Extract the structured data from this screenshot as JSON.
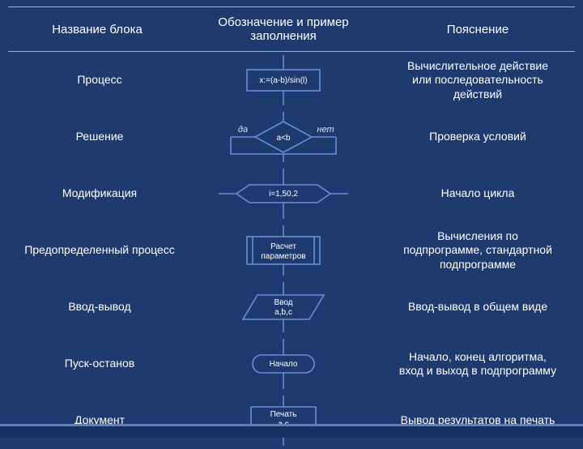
{
  "colors": {
    "bg": "#1f3a6e",
    "shape_stroke": "#6a8fd8",
    "shape_stroke2": "#5f7fbf",
    "text": "#ffffff",
    "italic": "#d8e2f5"
  },
  "header": {
    "col1": "Название блока",
    "col2": "Обозначение и пример\nзаполнения",
    "col3": "Пояснение"
  },
  "rows": [
    {
      "name": "Процесс",
      "desc": "Вычислительное действие\nили последовательность\nдействий",
      "shape": "process",
      "shape_text": "x:=(a-b)/sin(l)"
    },
    {
      "name": "Решение",
      "desc": "Проверка условий",
      "shape": "decision",
      "shape_text": "a<b",
      "yes": "да",
      "no": "нет"
    },
    {
      "name": "Модификация",
      "desc": "Начало цикла",
      "shape": "modification",
      "shape_text": "i=1,50,2"
    },
    {
      "name": "Предопределенный процесс",
      "desc": "Вычисления по\nподпрограмме, стандартной\nподпрограмме",
      "shape": "predefined",
      "shape_text": "Расчет\nпараметров"
    },
    {
      "name": "Ввод-вывод",
      "desc": "Ввод-вывод в общем виде",
      "shape": "io",
      "shape_text": "Ввод\na,b,c"
    },
    {
      "name": "Пуск-останов",
      "desc": "Начало, конец алгоритма,\nвход и выход в подпрограмму",
      "shape": "terminator",
      "shape_text": "Начало"
    },
    {
      "name": "Документ",
      "desc": "Вывод результатов на печать",
      "shape": "document",
      "shape_text": "Печать\na,c"
    }
  ]
}
